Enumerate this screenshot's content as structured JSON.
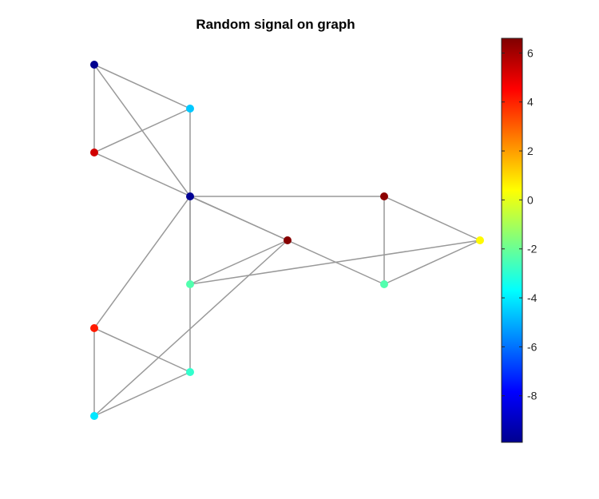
{
  "figure": {
    "title": "Random signal on graph"
  },
  "graph": {
    "edge_color": "#999999",
    "nodes": [
      {
        "id": 1,
        "value": -9.9
      },
      {
        "id": 2,
        "value": -4.6
      },
      {
        "id": 3,
        "value": 5.3
      },
      {
        "id": 4,
        "value": -9.8
      },
      {
        "id": 5,
        "value": 6.5
      },
      {
        "id": 6,
        "value": -2.4
      },
      {
        "id": 7,
        "value": 6.4
      },
      {
        "id": 8,
        "value": -2.4
      },
      {
        "id": 9,
        "value": 0.5
      },
      {
        "id": 10,
        "value": 4.1
      },
      {
        "id": 11,
        "value": -2.9
      },
      {
        "id": 12,
        "value": -4.1
      }
    ],
    "edges": [
      [
        1,
        2
      ],
      [
        1,
        3
      ],
      [
        1,
        4
      ],
      [
        2,
        3
      ],
      [
        2,
        6
      ],
      [
        3,
        5
      ],
      [
        4,
        5
      ],
      [
        4,
        6
      ],
      [
        4,
        7
      ],
      [
        4,
        10
      ],
      [
        5,
        6
      ],
      [
        5,
        8
      ],
      [
        5,
        12
      ],
      [
        6,
        9
      ],
      [
        6,
        11
      ],
      [
        7,
        8
      ],
      [
        7,
        9
      ],
      [
        8,
        9
      ],
      [
        10,
        11
      ],
      [
        10,
        12
      ],
      [
        11,
        12
      ]
    ]
  },
  "colorbar": {
    "colormap": "jet",
    "range": [
      -9.9,
      6.6
    ],
    "ticks": [
      6,
      4,
      2,
      0,
      -2,
      -4,
      -6,
      -8
    ],
    "colors": [
      "#00008F",
      "#0000FF",
      "#00FFFF",
      "#FFFF00",
      "#FF0000",
      "#800000"
    ]
  }
}
